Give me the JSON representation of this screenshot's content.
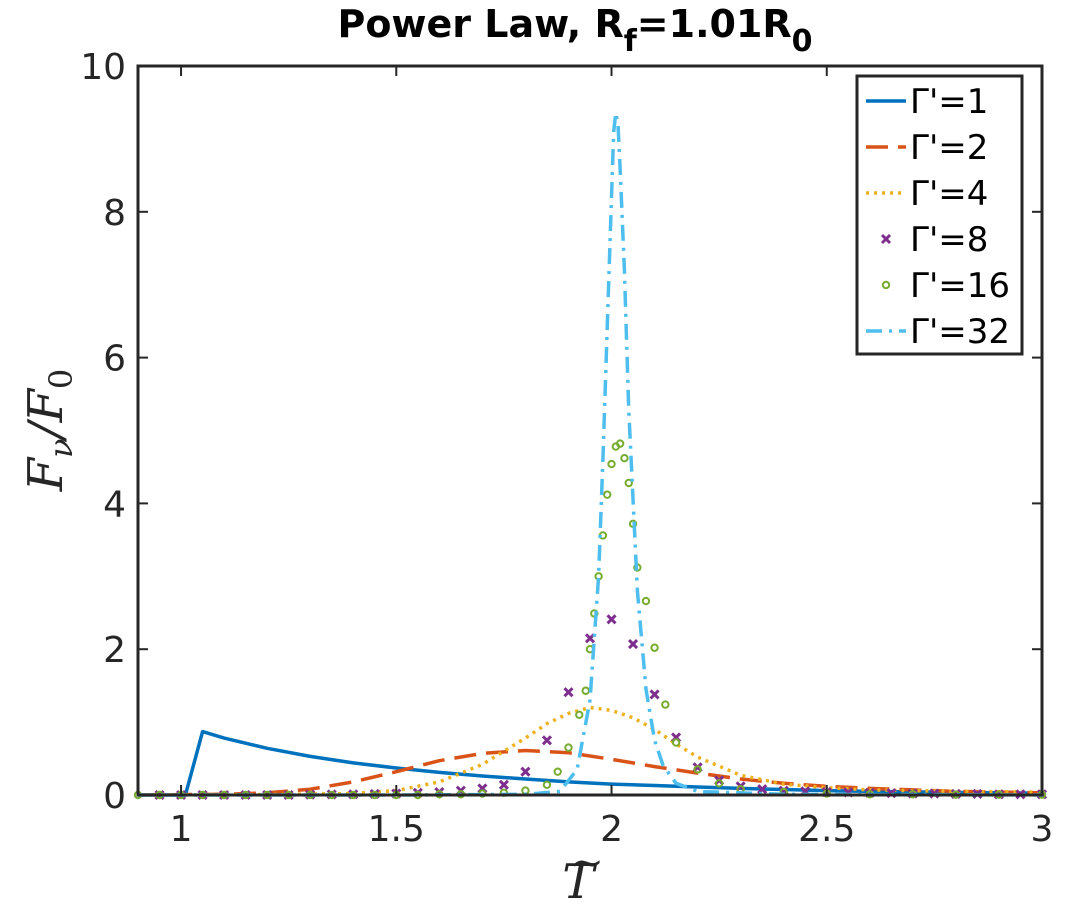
{
  "chart_data": {
    "type": "line",
    "title": {
      "main": "Power Law, R",
      "sub1": "f",
      "mid": "=1.01R",
      "sub2": "0"
    },
    "xlabel": "T̃",
    "ylabel": "Fν/F0",
    "ylabel_parts": {
      "main": "F",
      "sub": "ν",
      "slash": "/F",
      "sub2": "0"
    },
    "xlim": [
      0.9,
      3
    ],
    "ylim": [
      0,
      10
    ],
    "xticks": [
      1,
      1.5,
      2,
      2.5,
      3
    ],
    "xtick_labels": [
      "1",
      "1.5",
      "2",
      "2.5",
      "3"
    ],
    "yticks": [
      0,
      2,
      4,
      6,
      8,
      10
    ],
    "ytick_labels": [
      "0",
      "2",
      "4",
      "6",
      "8",
      "10"
    ],
    "grid": false,
    "legend_position": "top-right",
    "series": [
      {
        "name": "Γ'=1",
        "style": "solid",
        "color": "#0072BD",
        "x": [
          0.9,
          1.0,
          1.01,
          1.05,
          1.1,
          1.2,
          1.3,
          1.4,
          1.5,
          1.6,
          1.7,
          1.8,
          1.9,
          2.0,
          2.1,
          2.2,
          2.3,
          2.4,
          2.5,
          2.6,
          2.8,
          3.0
        ],
        "y": [
          0,
          0,
          0,
          0.87,
          0.78,
          0.64,
          0.53,
          0.44,
          0.37,
          0.31,
          0.26,
          0.22,
          0.18,
          0.15,
          0.13,
          0.11,
          0.09,
          0.075,
          0.06,
          0.05,
          0.035,
          0.025
        ]
      },
      {
        "name": "Γ'=2",
        "style": "dashed",
        "color": "#D95319",
        "x": [
          0.9,
          1.0,
          1.1,
          1.2,
          1.3,
          1.4,
          1.5,
          1.6,
          1.7,
          1.8,
          1.9,
          2.0,
          2.1,
          2.2,
          2.3,
          2.4,
          2.5,
          2.6,
          2.7,
          2.8,
          2.9,
          3.0
        ],
        "y": [
          0,
          0.005,
          0.01,
          0.03,
          0.08,
          0.18,
          0.32,
          0.47,
          0.57,
          0.61,
          0.58,
          0.49,
          0.39,
          0.3,
          0.22,
          0.16,
          0.12,
          0.09,
          0.07,
          0.05,
          0.04,
          0.03
        ]
      },
      {
        "name": "Γ'=4",
        "style": "dotted",
        "color": "#EDB120",
        "x": [
          0.9,
          1.2,
          1.4,
          1.5,
          1.6,
          1.7,
          1.8,
          1.85,
          1.9,
          1.95,
          2.0,
          2.05,
          2.1,
          2.15,
          2.2,
          2.3,
          2.4,
          2.5,
          2.6,
          2.8,
          3.0
        ],
        "y": [
          0,
          0.005,
          0.02,
          0.06,
          0.18,
          0.42,
          0.78,
          0.98,
          1.12,
          1.2,
          1.16,
          1.06,
          0.9,
          0.7,
          0.52,
          0.27,
          0.15,
          0.1,
          0.07,
          0.05,
          0.04
        ]
      },
      {
        "name": "Γ'=8",
        "style": "marker-x",
        "color": "#7E2F8E",
        "x": [
          0.95,
          1.0,
          1.05,
          1.1,
          1.15,
          1.2,
          1.25,
          1.3,
          1.35,
          1.4,
          1.45,
          1.5,
          1.55,
          1.6,
          1.65,
          1.7,
          1.75,
          1.8,
          1.85,
          1.9,
          1.95,
          2.0,
          2.05,
          2.1,
          2.15,
          2.2,
          2.25,
          2.3,
          2.35,
          2.4,
          2.45,
          2.5,
          2.55,
          2.6,
          2.65,
          2.7,
          2.75,
          2.8,
          2.85,
          2.9,
          2.95,
          3.0
        ],
        "y": [
          0,
          0,
          0,
          0,
          0,
          0,
          0,
          0.005,
          0.008,
          0.01,
          0.015,
          0.02,
          0.03,
          0.04,
          0.06,
          0.09,
          0.14,
          0.32,
          0.75,
          1.41,
          2.15,
          2.41,
          2.07,
          1.38,
          0.79,
          0.38,
          0.2,
          0.12,
          0.08,
          0.06,
          0.05,
          0.04,
          0.035,
          0.03,
          0.025,
          0.02,
          0.02,
          0.015,
          0.015,
          0.01,
          0.01,
          0.01
        ]
      },
      {
        "name": "Γ'=16",
        "style": "marker-o",
        "color": "#77AC30",
        "x": [
          0.9,
          0.95,
          1.0,
          1.05,
          1.1,
          1.15,
          1.2,
          1.25,
          1.3,
          1.35,
          1.4,
          1.45,
          1.5,
          1.55,
          1.6,
          1.65,
          1.7,
          1.75,
          1.8,
          1.85,
          1.875,
          1.9,
          1.925,
          1.94,
          1.95,
          1.96,
          1.97,
          1.98,
          1.99,
          2.0,
          2.01,
          2.02,
          2.03,
          2.04,
          2.05,
          2.06,
          2.08,
          2.1,
          2.125,
          2.15,
          2.2,
          2.25,
          2.3,
          2.4,
          2.5,
          2.6,
          2.7,
          2.8,
          2.9,
          3.0
        ],
        "y": [
          0,
          0,
          0,
          0,
          0,
          0,
          0,
          0,
          0,
          0,
          0,
          0,
          0,
          0,
          0.01,
          0.01,
          0.02,
          0.03,
          0.06,
          0.14,
          0.32,
          0.65,
          1.1,
          1.43,
          2.0,
          2.49,
          3.0,
          3.56,
          4.12,
          4.54,
          4.78,
          4.82,
          4.62,
          4.28,
          3.72,
          3.12,
          2.66,
          2.02,
          1.24,
          0.72,
          0.35,
          0.16,
          0.08,
          0.04,
          0.02,
          0.01,
          0.01,
          0.005,
          0.005,
          0.005
        ]
      },
      {
        "name": "Γ'=32",
        "style": "dashdot",
        "color": "#4DBEEE",
        "x": [
          0.9,
          1.5,
          1.8,
          1.88,
          1.92,
          1.95,
          1.97,
          1.98,
          1.99,
          2.0,
          2.005,
          2.01,
          2.015,
          2.02,
          2.03,
          2.04,
          2.06,
          2.08,
          2.1,
          2.12,
          2.15,
          2.2,
          2.4,
          3.0
        ],
        "y": [
          0,
          0,
          0.01,
          0.05,
          0.35,
          1.3,
          3.0,
          4.6,
          6.4,
          8.2,
          9.1,
          9.36,
          9.2,
          8.6,
          7.2,
          5.3,
          2.8,
          1.45,
          0.75,
          0.4,
          0.16,
          0.05,
          0.01,
          0
        ]
      }
    ]
  }
}
